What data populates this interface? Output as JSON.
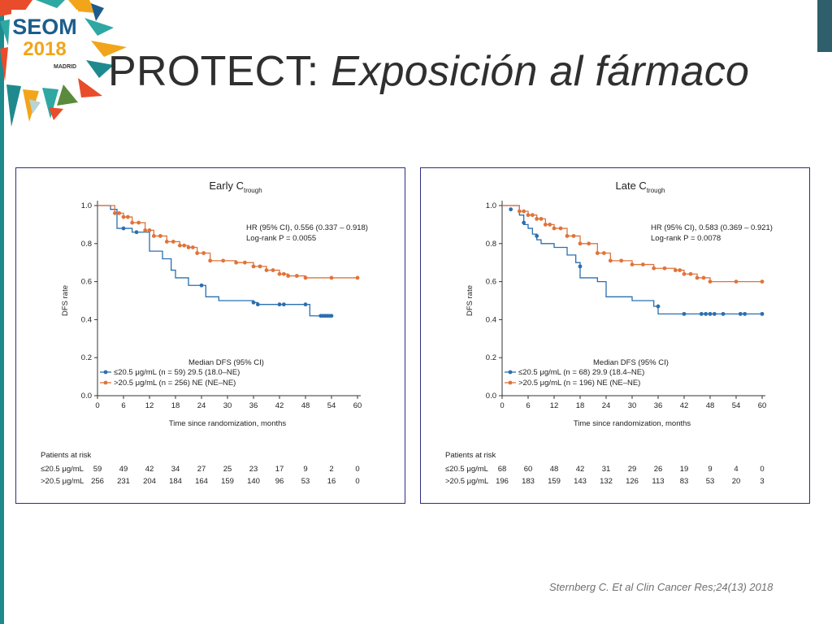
{
  "slide": {
    "title_main": "PROTECT: ",
    "title_italic": "Exposición al fármaco",
    "citation": "Sternberg C. Et al Clin Cancer Res;24(13) 2018",
    "logo": {
      "line1": "SEOM",
      "line2": "2018",
      "city": "MADRID"
    }
  },
  "colors": {
    "blue": "#2a6fb0",
    "orange": "#e0733a",
    "frame": "#2a2f7d",
    "teal": "#1f8a8e"
  },
  "chart_data": [
    {
      "type": "line",
      "title": "Early C",
      "title_sub": "trough",
      "xlabel": "Time since randomization, months",
      "ylabel": "DFS rate",
      "xlim": [
        0,
        60
      ],
      "ylim": [
        0,
        1.0
      ],
      "x_ticks": [
        0,
        6,
        12,
        18,
        24,
        30,
        36,
        42,
        48,
        54,
        60
      ],
      "y_ticks": [
        "0.0",
        "0.2",
        "0.4",
        "0.6",
        "0.8",
        "1.0"
      ],
      "stats": {
        "hr": "HR (95% CI), 0.556 (0.337 – 0.918)",
        "logrank": "Log-rank ",
        "logrank_p": "P = 0.0055"
      },
      "legend_title": "Median DFS (95% CI)",
      "legend": [
        {
          "label": "≤20.5 μg/mL (",
          "n": "n = 59) 29.5 (18.0–NE)"
        },
        {
          "label": ">20.5 μg/mL (",
          "n": "n = 256) NE (NE–NE)"
        }
      ],
      "series": [
        {
          "name": "≤20.5 μg/mL",
          "color": "#2a6fb0",
          "x": [
            0,
            3,
            4.5,
            8,
            9.5,
            12,
            15,
            17,
            18,
            21,
            25,
            28,
            36,
            37,
            48,
            49,
            54
          ],
          "y": [
            1.0,
            0.98,
            0.88,
            0.86,
            0.86,
            0.76,
            0.72,
            0.66,
            0.62,
            0.58,
            0.52,
            0.5,
            0.49,
            0.48,
            0.48,
            0.42,
            0.42
          ],
          "censors": [
            [
              6,
              0.88
            ],
            [
              9,
              0.86
            ],
            [
              24,
              0.58
            ],
            [
              36,
              0.49
            ],
            [
              37,
              0.48
            ],
            [
              42,
              0.48
            ],
            [
              43,
              0.48
            ],
            [
              48,
              0.48
            ],
            [
              51.5,
              0.42
            ],
            [
              52,
              0.42
            ],
            [
              52.5,
              0.42
            ],
            [
              53,
              0.42
            ],
            [
              53.5,
              0.42
            ],
            [
              54,
              0.42
            ]
          ]
        },
        {
          "name": ">20.5 μg/mL",
          "color": "#e0733a",
          "x": [
            0,
            4,
            6,
            8,
            11,
            13,
            16,
            19,
            21,
            23,
            26,
            32,
            36,
            39,
            42,
            44,
            48,
            60
          ],
          "y": [
            1.0,
            0.96,
            0.94,
            0.91,
            0.87,
            0.84,
            0.81,
            0.79,
            0.78,
            0.75,
            0.71,
            0.7,
            0.68,
            0.66,
            0.64,
            0.63,
            0.62,
            0.62
          ]
        }
      ],
      "risk_table": {
        "header": "Patients at risk",
        "rows": [
          {
            "label": "≤20.5 μg/mL",
            "values": [
              "59",
              "49",
              "42",
              "34",
              "27",
              "25",
              "23",
              "17",
              "9",
              "2",
              "0"
            ]
          },
          {
            "label": ">20.5 μg/mL",
            "values": [
              "256",
              "231",
              "204",
              "184",
              "164",
              "159",
              "140",
              "96",
              "53",
              "16",
              "0"
            ]
          }
        ]
      }
    },
    {
      "type": "line",
      "title": "Late C",
      "title_sub": "trough",
      "xlabel": "Time since randomization, months",
      "ylabel": "DFS rate",
      "xlim": [
        0,
        60
      ],
      "ylim": [
        0,
        1.0
      ],
      "x_ticks": [
        0,
        6,
        12,
        18,
        24,
        30,
        36,
        42,
        48,
        54,
        60
      ],
      "y_ticks": [
        "0.0",
        "0.2",
        "0.4",
        "0.6",
        "0.8",
        "1.0"
      ],
      "stats": {
        "hr": "HR (95% CI), 0.583 (0.369 – 0.921)",
        "logrank": "Log-rank ",
        "logrank_p": "P = 0.0078"
      },
      "legend_title": "Median DFS  (95% CI)",
      "legend": [
        {
          "label": "≤20.5 μg/mL (",
          "n": "n = 68) 29.9 (18.4–NE)"
        },
        {
          "label": ">20.5 μg/mL (",
          "n": "n = 196) NE (NE–NE)"
        }
      ],
      "series": [
        {
          "name": "≤20.5 μg/mL",
          "color": "#2a6fb0",
          "x": [
            0,
            4,
            5,
            6,
            7,
            8,
            9,
            12,
            15,
            17,
            18,
            22,
            24,
            30,
            35,
            36,
            60
          ],
          "y": [
            1.0,
            0.95,
            0.9,
            0.88,
            0.85,
            0.82,
            0.8,
            0.78,
            0.74,
            0.7,
            0.62,
            0.6,
            0.52,
            0.5,
            0.47,
            0.43,
            0.43
          ],
          "censors": [
            [
              2,
              0.98
            ],
            [
              5,
              0.91
            ],
            [
              8,
              0.84
            ],
            [
              18,
              0.68
            ],
            [
              36,
              0.47
            ],
            [
              42,
              0.43
            ],
            [
              46,
              0.43
            ],
            [
              47,
              0.43
            ],
            [
              48,
              0.43
            ],
            [
              49,
              0.43
            ],
            [
              51,
              0.43
            ],
            [
              55,
              0.43
            ],
            [
              56,
              0.43
            ],
            [
              60,
              0.43
            ]
          ]
        },
        {
          "name": ">20.5 μg/mL",
          "color": "#e0733a",
          "x": [
            0,
            4,
            6,
            8,
            10,
            12,
            15,
            18,
            22,
            25,
            30,
            35,
            40,
            42,
            45,
            48,
            60
          ],
          "y": [
            1.0,
            0.97,
            0.95,
            0.93,
            0.9,
            0.88,
            0.84,
            0.8,
            0.75,
            0.71,
            0.69,
            0.67,
            0.66,
            0.64,
            0.62,
            0.6,
            0.6
          ]
        }
      ],
      "risk_table": {
        "header": "Patients at  risk",
        "rows": [
          {
            "label": "≤20.5 μg/mL",
            "values": [
              "68",
              "60",
              "48",
              "42",
              "31",
              "29",
              "26",
              "19",
              "9",
              "4",
              "0"
            ]
          },
          {
            "label": ">20.5 μg/mL",
            "values": [
              "196",
              "183",
              "159",
              "143",
              "132",
              "126",
              "113",
              "83",
              "53",
              "20",
              "3"
            ]
          }
        ]
      }
    }
  ]
}
